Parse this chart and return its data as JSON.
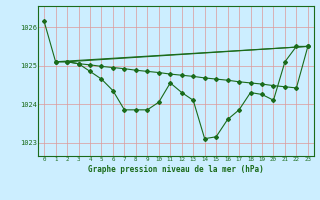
{
  "title": "Graphe pression niveau de la mer (hPa)",
  "background_color": "#cceeff",
  "grid_color": "#dd9999",
  "line_color": "#1a6b1a",
  "marker_color": "#1a6b1a",
  "xlim": [
    -0.5,
    23.5
  ],
  "ylim": [
    1022.65,
    1026.55
  ],
  "yticks": [
    1023,
    1024,
    1025,
    1026
  ],
  "xticks": [
    0,
    1,
    2,
    3,
    4,
    5,
    6,
    7,
    8,
    9,
    10,
    11,
    12,
    13,
    14,
    15,
    16,
    17,
    18,
    19,
    20,
    21,
    22,
    23
  ],
  "series1": {
    "x": [
      0,
      1,
      2,
      3,
      4,
      5,
      6,
      7,
      8,
      9,
      10,
      11,
      12,
      13,
      14,
      15,
      16,
      17,
      18,
      19,
      20,
      21,
      22,
      23
    ],
    "y": [
      1026.15,
      1025.1,
      1025.1,
      1025.05,
      1024.85,
      1024.65,
      1024.35,
      1023.85,
      1023.85,
      1023.85,
      1024.05,
      1024.55,
      1024.3,
      1024.1,
      1023.1,
      1023.15,
      1023.6,
      1023.85,
      1024.3,
      1024.25,
      1024.1,
      1025.1,
      1025.5,
      1025.5
    ]
  },
  "series2": {
    "x": [
      1,
      2,
      3,
      4,
      5,
      6,
      7,
      8,
      9,
      10,
      11,
      12,
      13,
      14,
      15,
      16,
      17,
      18,
      19,
      20,
      21,
      22,
      23
    ],
    "y": [
      1025.1,
      1025.1,
      1025.05,
      1025.02,
      1024.98,
      1024.95,
      1024.92,
      1024.88,
      1024.85,
      1024.82,
      1024.78,
      1024.75,
      1024.72,
      1024.68,
      1024.65,
      1024.62,
      1024.58,
      1024.55,
      1024.52,
      1024.48,
      1024.45,
      1024.42,
      1025.5
    ]
  },
  "series3": {
    "x": [
      1,
      23
    ],
    "y": [
      1025.1,
      1025.5
    ]
  },
  "series4": {
    "x": [
      2,
      23
    ],
    "y": [
      1025.1,
      1025.5
    ]
  }
}
